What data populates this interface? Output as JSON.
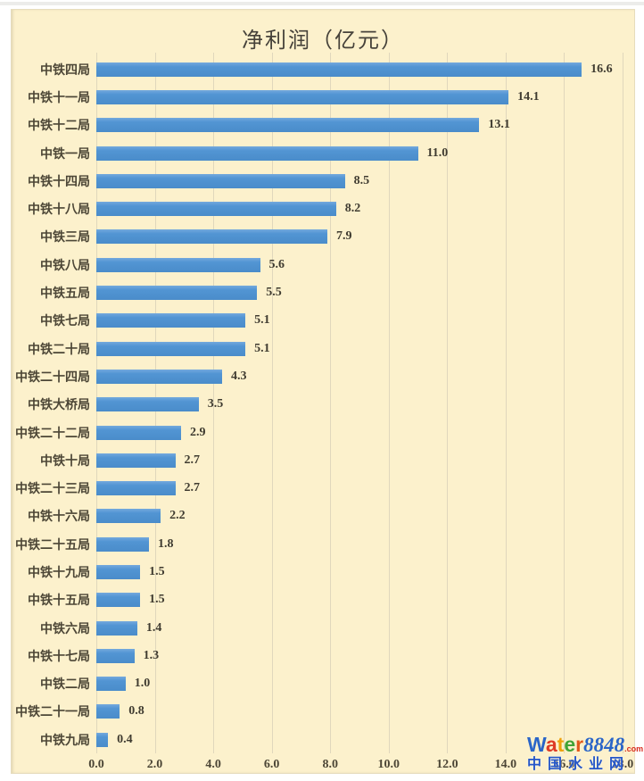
{
  "page": {
    "title": "净利润（亿元）"
  },
  "chart_data": {
    "type": "bar",
    "orientation": "horizontal",
    "title": "净利润（亿元）",
    "categories": [
      "中铁四局",
      "中铁十一局",
      "中铁十二局",
      "中铁一局",
      "中铁十四局",
      "中铁十八局",
      "中铁三局",
      "中铁八局",
      "中铁五局",
      "中铁七局",
      "中铁二十局",
      "中铁二十四局",
      "中铁大桥局",
      "中铁二十二局",
      "中铁十局",
      "中铁二十三局",
      "中铁十六局",
      "中铁二十五局",
      "中铁十九局",
      "中铁十五局",
      "中铁六局",
      "中铁十七局",
      "中铁二局",
      "中铁二十一局",
      "中铁九局"
    ],
    "values": [
      16.6,
      14.1,
      13.1,
      11.0,
      8.5,
      8.2,
      7.9,
      5.6,
      5.5,
      5.1,
      5.1,
      4.3,
      3.5,
      2.9,
      2.7,
      2.7,
      2.2,
      1.8,
      1.5,
      1.5,
      1.4,
      1.3,
      1.0,
      0.8,
      0.4
    ],
    "value_labels": [
      "16.6",
      "14.1",
      "13.1",
      "11.0",
      "8.5",
      "8.2",
      "7.9",
      "5.6",
      "5.5",
      "5.1",
      "5.1",
      "4.3",
      "3.5",
      "2.9",
      "2.7",
      "2.7",
      "2.2",
      "1.8",
      "1.5",
      "1.5",
      "1.4",
      "1.3",
      "1.0",
      "0.8",
      "0.4"
    ],
    "x_ticks": [
      0,
      2,
      4,
      6,
      8,
      10,
      12,
      14,
      16,
      18
    ],
    "x_tick_labels": [
      "0.0",
      "2.0",
      "4.0",
      "6.0",
      "8.0",
      "10.0",
      "12.0",
      "14.0",
      "16.0",
      "18.0"
    ],
    "xlim": [
      0,
      18
    ],
    "grid": "vertical-on",
    "legend": "none",
    "bar_color": "#5295d3",
    "background_color": "#fcf1cc",
    "text_color": "#4c4636"
  },
  "watermark": {
    "brand_letters": [
      {
        "ch": "W",
        "color": "#2a65c8"
      },
      {
        "ch": "a",
        "color": "#de3a26"
      },
      {
        "ch": "t",
        "color": "#efa10b"
      },
      {
        "ch": "e",
        "color": "#41a336"
      },
      {
        "ch": "r",
        "color": "#e2581b"
      }
    ],
    "number": "8848",
    "number_color": "#2a65c8",
    "tld": ".com",
    "tld_color": "#d92c1f",
    "subtitle": "中国水业网",
    "subtitle_color": "#2456c8"
  }
}
